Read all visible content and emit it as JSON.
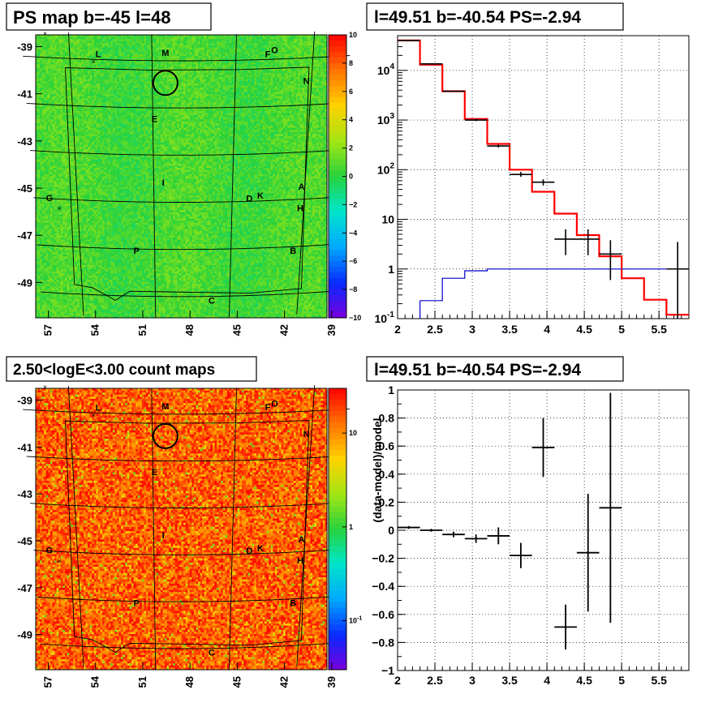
{
  "chart_data": [
    {
      "type": "heatmap",
      "title": "PS map b=-45 l=48",
      "xlabel": "",
      "ylabel": "",
      "x_ticks": [
        "57",
        "54",
        "51",
        "48",
        "45",
        "42",
        "39"
      ],
      "y_ticks": [
        "-39",
        "-41",
        "-43",
        "-45",
        "-47",
        "-49"
      ],
      "xlim": [
        57.8,
        39.3
      ],
      "ylim": [
        -50.5,
        -38.5
      ],
      "colorbar": {
        "scale": "linear",
        "min": -10,
        "max": 10,
        "ticks": [
          "10",
          "8",
          "6",
          "4",
          "2",
          "0",
          "−2",
          "−4",
          "−6",
          "−8",
          "−10"
        ]
      },
      "source_labels": [
        {
          "t": "L",
          "x": 53.5,
          "y": -39.5
        },
        {
          "t": "M",
          "x": 49.5,
          "y": -39.4
        },
        {
          "t": "F",
          "x": 43.4,
          "y": -39.5
        },
        {
          "t": "O",
          "x": 43.0,
          "y": -39.35
        },
        {
          "t": "N",
          "x": 41.0,
          "y": -40.7
        },
        {
          "t": "E",
          "x": 50.2,
          "y": -42.2
        },
        {
          "t": "I",
          "x": 49.7,
          "y": -44.9
        },
        {
          "t": "A",
          "x": 40.9,
          "y": -45.2
        },
        {
          "t": "D",
          "x": 44.2,
          "y": -45.6
        },
        {
          "t": "K",
          "x": 43.5,
          "y": -45.5
        },
        {
          "t": "G",
          "x": 57.0,
          "y": -45.7
        },
        {
          "t": "H",
          "x": 40.9,
          "y": -46.1
        },
        {
          "t": "P",
          "x": 51.5,
          "y": -47.8
        },
        {
          "t": "B",
          "x": 41.2,
          "y": -47.9
        },
        {
          "t": "C",
          "x": 46.5,
          "y": -49.9
        }
      ]
    },
    {
      "type": "line",
      "title": "l=49.51 b=-40.54 PS=-2.94",
      "xlabel": "",
      "ylabel": "",
      "xlim": [
        2,
        5.9
      ],
      "ylim": [
        0.1,
        50000
      ],
      "yscale": "log",
      "grid": true,
      "x_ticks": [
        "2",
        "2.5",
        "3",
        "3.5",
        "4",
        "4.5",
        "5",
        "5.5"
      ],
      "y_ticks": [
        "10^{-1}",
        "1",
        "10",
        "10^{2}",
        "10^{3}",
        "10^{4}"
      ],
      "series": [
        {
          "color": "#ff0000",
          "kind": "step",
          "edges": [
            2.0,
            2.3,
            2.6,
            2.9,
            3.2,
            3.5,
            3.8,
            4.1,
            4.4,
            4.7,
            5.0,
            5.3,
            5.6,
            5.9
          ],
          "values": [
            40000,
            13000,
            3800,
            1050,
            330,
            100,
            36,
            13,
            4.8,
            1.8,
            0.65,
            0.24,
            0.12
          ]
        },
        {
          "color": "#0000cc",
          "kind": "step",
          "edges": [
            2.3,
            2.6,
            2.9,
            3.2,
            3.5,
            3.8,
            4.1,
            4.4,
            4.7,
            5.0,
            5.3,
            5.6,
            5.9
          ],
          "values": [
            0.23,
            0.65,
            0.92,
            1.0,
            1.0,
            1.0,
            1.0,
            1.0,
            1.0,
            1.0,
            1.0,
            1.0
          ]
        },
        {
          "color": "#000000",
          "kind": "errorbar",
          "points": [
            {
              "x": 2.15,
              "y": 40000,
              "xe": 0.15,
              "ylo": 40000,
              "yhi": 40000
            },
            {
              "x": 2.45,
              "y": 13500,
              "xe": 0.15,
              "ylo": 13500,
              "yhi": 13500
            },
            {
              "x": 2.75,
              "y": 3800,
              "xe": 0.15,
              "ylo": 3800,
              "yhi": 3800
            },
            {
              "x": 3.05,
              "y": 1000,
              "xe": 0.15,
              "ylo": 950,
              "yhi": 1060
            },
            {
              "x": 3.35,
              "y": 300,
              "xe": 0.15,
              "ylo": 280,
              "yhi": 320
            },
            {
              "x": 3.65,
              "y": 80,
              "xe": 0.15,
              "ylo": 72,
              "yhi": 90
            },
            {
              "x": 3.95,
              "y": 56,
              "xe": 0.15,
              "ylo": 48,
              "yhi": 64
            },
            {
              "x": 4.25,
              "y": 4,
              "xe": 0.15,
              "ylo": 1.9,
              "yhi": 6.3
            },
            {
              "x": 4.55,
              "y": 4,
              "xe": 0.15,
              "ylo": 1.9,
              "yhi": 6.3
            },
            {
              "x": 4.85,
              "y": 2,
              "xe": 0.15,
              "ylo": 0.6,
              "yhi": 3.8
            },
            {
              "x": 5.75,
              "y": 1,
              "xe": 0.15,
              "ylo": 0.1,
              "yhi": 3.5
            }
          ]
        }
      ]
    },
    {
      "type": "heatmap",
      "title": "2.50<logE<3.00 count maps",
      "xlabel": "",
      "ylabel": "",
      "x_ticks": [
        "57",
        "54",
        "51",
        "48",
        "45",
        "42",
        "39"
      ],
      "y_ticks": [
        "-39",
        "-41",
        "-43",
        "-45",
        "-47",
        "-49"
      ],
      "xlim": [
        57.8,
        39.3
      ],
      "ylim": [
        -50.5,
        -38.5
      ],
      "colorbar": {
        "scale": "log",
        "min": 0.03,
        "max": 30,
        "ticks": [
          "10",
          "1",
          "10^{-1}"
        ]
      }
    },
    {
      "type": "scatter",
      "title": "l=49.51 b=-40.54 PS=-2.94",
      "xlabel": "",
      "ylabel": "(data-model)/model",
      "xlim": [
        2,
        5.9
      ],
      "ylim": [
        -1,
        1
      ],
      "grid": true,
      "x_ticks": [
        "2",
        "2.5",
        "3",
        "3.5",
        "4",
        "4.5",
        "5",
        "5.5"
      ],
      "y_ticks": [
        "−1",
        "−0.8",
        "−0.6",
        "−0.4",
        "−0.2",
        "0",
        "0.2",
        "0.4",
        "0.6",
        "0.8",
        "1"
      ],
      "points": [
        {
          "x": 2.15,
          "y": 0.02,
          "xe": 0.15,
          "ye": 0.01
        },
        {
          "x": 2.45,
          "y": 0.0,
          "xe": 0.15,
          "ye": 0.01
        },
        {
          "x": 2.75,
          "y": -0.03,
          "xe": 0.15,
          "ye": 0.02
        },
        {
          "x": 3.05,
          "y": -0.06,
          "xe": 0.15,
          "ye": 0.03
        },
        {
          "x": 3.35,
          "y": -0.04,
          "xe": 0.15,
          "ye": 0.06
        },
        {
          "x": 3.65,
          "y": -0.18,
          "xe": 0.15,
          "ye": 0.09
        },
        {
          "x": 3.95,
          "y": 0.59,
          "xe": 0.15,
          "ye": 0.21
        },
        {
          "x": 4.25,
          "y": -0.69,
          "xe": 0.15,
          "ye": 0.16
        },
        {
          "x": 4.55,
          "y": -0.16,
          "xe": 0.15,
          "ye": 0.42
        },
        {
          "x": 4.85,
          "y": 0.16,
          "xe": 0.15,
          "ye": 0.82
        }
      ]
    }
  ]
}
